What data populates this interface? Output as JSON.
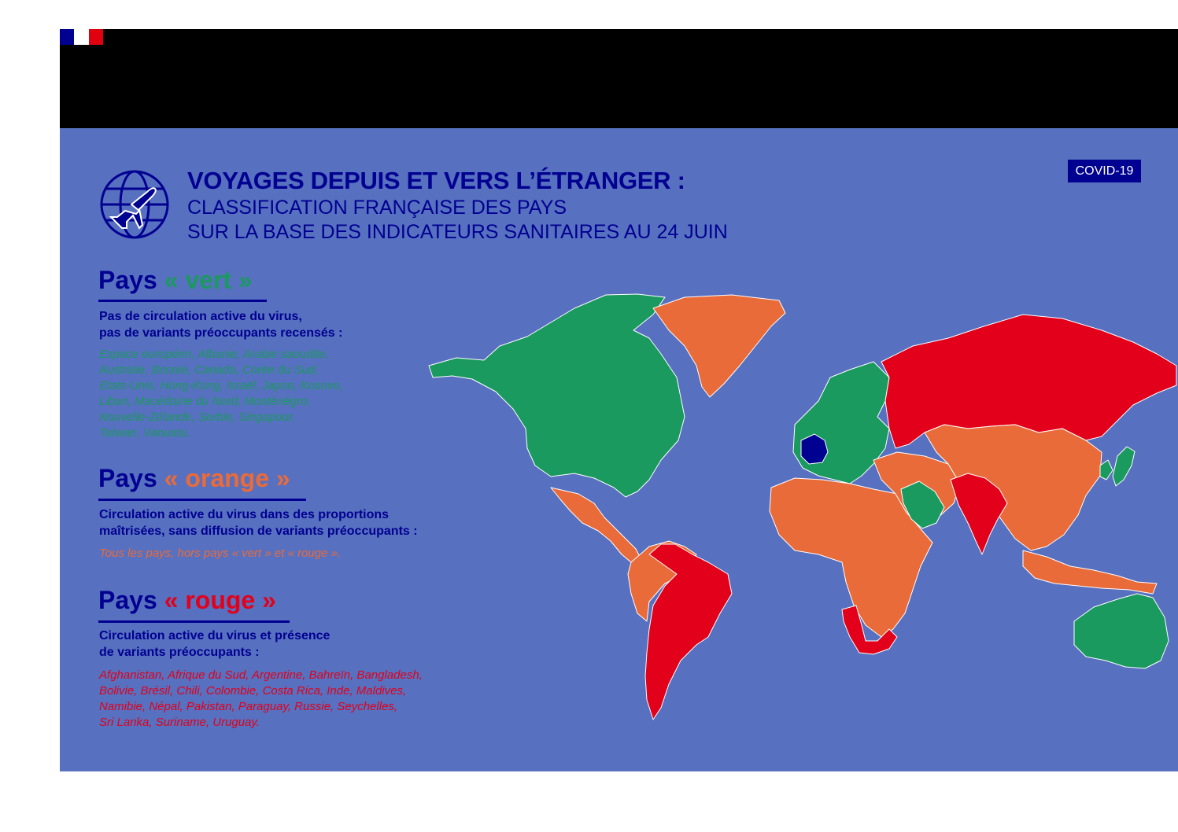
{
  "colors": {
    "background": "#5770bf",
    "navy": "#000091",
    "green": "#1a9a5e",
    "orange": "#ea6b3a",
    "red": "#e2001a",
    "france": "#000091",
    "flag_blue": "#000091",
    "flag_white": "#ffffff",
    "flag_red": "#e1000f"
  },
  "header": {
    "title": "VOYAGES DEPUIS ET VERS L’ÉTRANGER :",
    "subtitle_line1": "CLASSIFICATION FRANÇAISE DES PAYS",
    "subtitle_line2": "SUR LA BASE DES INDICATEURS SANITAIRES AU 24 JUIN",
    "icon": "globe-airplane-icon"
  },
  "badge": "COVID-19",
  "categories": [
    {
      "id": "vert",
      "heading_prefix": "Pays",
      "heading_label": "« vert »",
      "description": [
        "Pas de circulation active du virus,",
        "pas de variants préoccupants recensés :"
      ],
      "countries": [
        "Espace européen, Albanie, Arabie saoudite,",
        "Australie, Bosnie, Canada, Corée du Sud,",
        "Etats-Unis, Hong-Kong, Israël, Japon, Kosovo,",
        "Liban, Macédoine du Nord, Monténégro,",
        "Nouvelle-Zélande, Serbie, Singapour,",
        "Taïwan, Vanuatu."
      ]
    },
    {
      "id": "orange",
      "heading_prefix": "Pays",
      "heading_label": "« orange »",
      "description": [
        "Circulation active du virus dans des proportions",
        "maîtrisées, sans diffusion de variants préoccupants :"
      ],
      "countries": [
        "Tous les pays, hors pays « vert » et « rouge »."
      ]
    },
    {
      "id": "rouge",
      "heading_prefix": "Pays",
      "heading_label": "« rouge »",
      "description": [
        "Circulation active du virus et présence",
        "de variants préoccupants :"
      ],
      "countries": [
        "Afghanistan, Afrique du Sud, Argentine, Bahreïn, Bangladesh,",
        "Bolivie, Brésil, Chili, Colombie, Costa Rica, Inde, Maldives,",
        "Namibie, Népal, Pakistan, Paraguay, Russie, Seychelles,",
        "Sri Lanka, Suriname, Uruguay."
      ]
    }
  ],
  "map": {
    "regions": [
      {
        "name": "north-america",
        "status": "green"
      },
      {
        "name": "greenland",
        "status": "orange"
      },
      {
        "name": "mexico-central-america",
        "status": "orange"
      },
      {
        "name": "south-america-north",
        "status": "orange"
      },
      {
        "name": "south-america-red",
        "status": "red"
      },
      {
        "name": "europe",
        "status": "green"
      },
      {
        "name": "france",
        "status": "france"
      },
      {
        "name": "africa",
        "status": "orange"
      },
      {
        "name": "southern-africa-red",
        "status": "red"
      },
      {
        "name": "middle-east",
        "status": "orange"
      },
      {
        "name": "saudi-arabia",
        "status": "green"
      },
      {
        "name": "russia",
        "status": "red"
      },
      {
        "name": "asia",
        "status": "orange"
      },
      {
        "name": "south-asia",
        "status": "red"
      },
      {
        "name": "japan",
        "status": "green"
      },
      {
        "name": "korea",
        "status": "green"
      },
      {
        "name": "southeast-asia",
        "status": "orange"
      },
      {
        "name": "australia",
        "status": "green"
      }
    ]
  }
}
